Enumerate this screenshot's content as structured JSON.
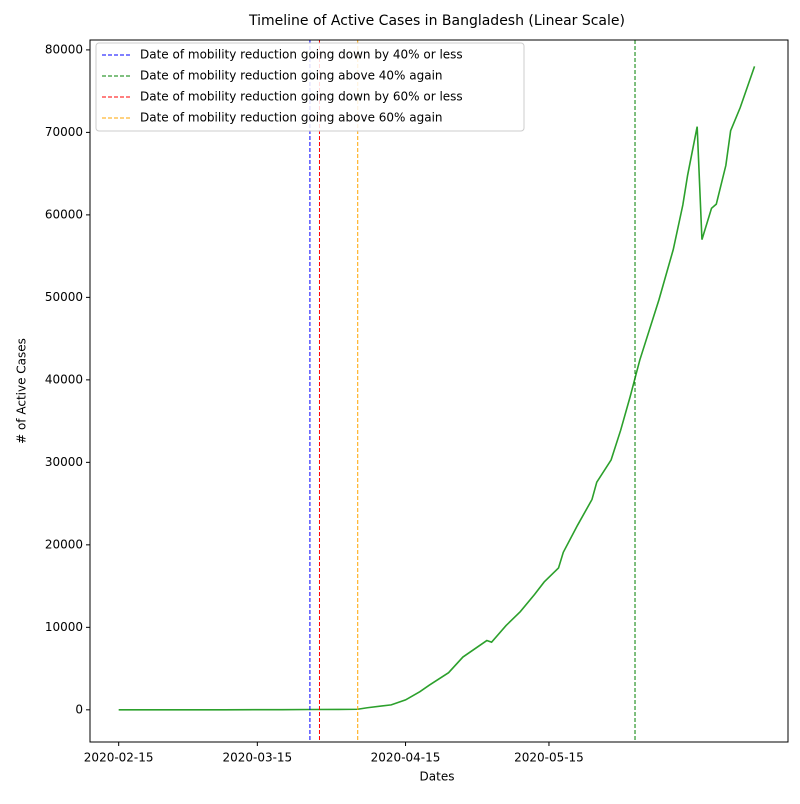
{
  "chart_data": {
    "type": "line",
    "title": "Timeline of Active Cases in Bangladesh (Linear Scale)",
    "x_label": "Dates",
    "y_label": "# of Active Cases",
    "x": [
      "2020-02-15",
      "2020-03-08",
      "2020-03-20",
      "2020-03-26",
      "2020-04-01",
      "2020-04-05",
      "2020-04-07",
      "2020-04-12",
      "2020-04-15",
      "2020-04-18",
      "2020-04-20",
      "2020-04-24",
      "2020-04-27",
      "2020-05-02",
      "2020-05-03",
      "2020-05-06",
      "2020-05-09",
      "2020-05-12",
      "2020-05-14",
      "2020-05-17",
      "2020-05-18",
      "2020-05-21",
      "2020-05-24",
      "2020-05-25",
      "2020-05-28",
      "2020-05-30",
      "2020-06-01",
      "2020-06-03",
      "2020-06-07",
      "2020-06-10",
      "2020-06-12",
      "2020-06-13",
      "2020-06-15",
      "2020-06-16",
      "2020-06-18",
      "2020-06-19",
      "2020-06-21",
      "2020-06-22",
      "2020-06-24",
      "2020-06-27"
    ],
    "series": [
      {
        "color": "#2ca02c",
        "values": [
          0,
          3,
          20,
          40,
          50,
          70,
          250,
          600,
          1200,
          2200,
          3000,
          4500,
          6400,
          8400,
          8200,
          10200,
          11900,
          14000,
          15500,
          17200,
          19100,
          22400,
          25500,
          27600,
          30300,
          33900,
          38000,
          42400,
          49700,
          55800,
          61200,
          64800,
          70700,
          57000,
          60800,
          61300,
          66000,
          70200,
          73000,
          78000
        ]
      }
    ],
    "vlines": [
      {
        "name": "Date of mobility reduction going down by 40% or less",
        "color": "blue",
        "x": "2020-03-26"
      },
      {
        "name": "Date of mobility reduction going above 40% again",
        "color": "green",
        "x": "2020-06-02"
      },
      {
        "name": "Date of mobility reduction going down by 60% or less",
        "color": "red",
        "x": "2020-03-28"
      },
      {
        "name": "Date of mobility reduction going above 60% again",
        "color": "orange",
        "x": "2020-04-05"
      }
    ],
    "xlim": [
      "2020-02-09",
      "2020-07-04"
    ],
    "xticks": [
      "2020-02-15",
      "2020-03-15",
      "2020-04-15",
      "2020-05-15"
    ],
    "ylim": [
      -3900,
      81200
    ],
    "yticks": [
      0,
      10000,
      20000,
      30000,
      40000,
      50000,
      60000,
      70000,
      80000
    ],
    "legend": "upper left"
  }
}
